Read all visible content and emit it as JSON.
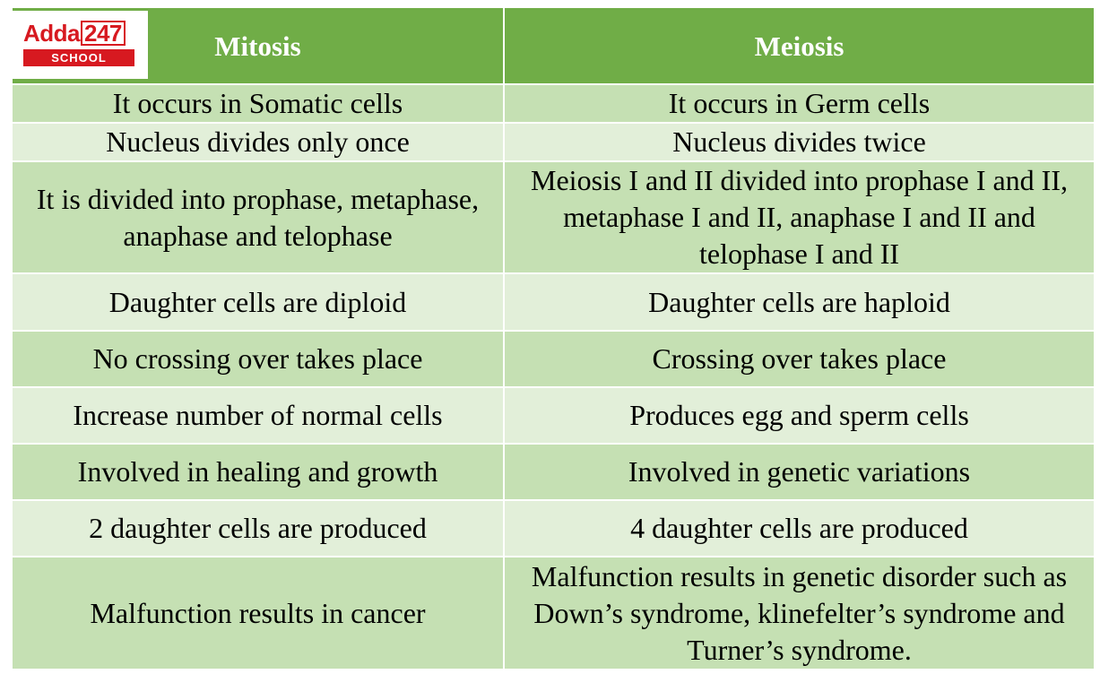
{
  "logo": {
    "brand": "Adda",
    "number": "247",
    "sub": "SCHOOL"
  },
  "table": {
    "header": [
      "Mitosis",
      "Meiosis"
    ],
    "rows": [
      [
        "It occurs in Somatic cells",
        "It occurs in Germ cells"
      ],
      [
        "Nucleus divides only once",
        "Nucleus divides twice"
      ],
      [
        "It is divided into prophase, metaphase, anaphase and telophase",
        "Meiosis I and II divided into prophase I and II, metaphase I and II, anaphase I and II and telophase I and II"
      ],
      [
        "Daughter cells are diploid",
        "Daughter cells are haploid"
      ],
      [
        "No crossing over takes place",
        "Crossing over takes place"
      ],
      [
        "Increase number of normal cells",
        "Produces egg and sperm cells"
      ],
      [
        "Involved in healing and growth",
        "Involved in genetic variations"
      ],
      [
        "2 daughter cells are produced",
        "4 daughter cells are produced"
      ],
      [
        "Malfunction results in cancer",
        "Malfunction results in genetic disorder such as Down’s syndrome, klinefelter’s syndrome and Turner’s syndrome."
      ]
    ]
  }
}
